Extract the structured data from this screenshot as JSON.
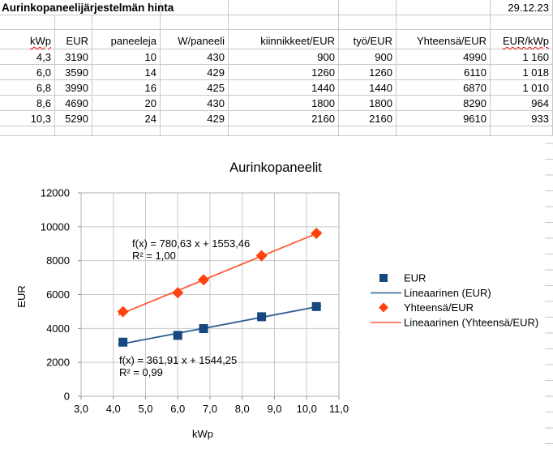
{
  "sheet": {
    "title": "Aurinkopaneelijärjestelmän hinta",
    "date": "29.12.23",
    "columns": [
      "kWp",
      "EUR",
      "paneeleja",
      "W/paneeli",
      "kiinnikkeet/EUR",
      "työ/EUR",
      "Yhteensä/EUR",
      "EUR/kWp"
    ],
    "misspelled_columns": [
      "kWp",
      "EUR/kWp"
    ],
    "rows": [
      [
        "4,3",
        "3190",
        "10",
        "430",
        "900",
        "900",
        "4990",
        "1 160"
      ],
      [
        "6,0",
        "3590",
        "14",
        "429",
        "1260",
        "1260",
        "6110",
        "1 018"
      ],
      [
        "6,8",
        "3990",
        "16",
        "425",
        "1440",
        "1440",
        "6870",
        "1 010"
      ],
      [
        "8,6",
        "4690",
        "20",
        "430",
        "1800",
        "1800",
        "8290",
        "964"
      ],
      [
        "10,3",
        "5290",
        "24",
        "429",
        "2160",
        "2160",
        "9610",
        "933"
      ]
    ]
  },
  "chart_data": {
    "type": "scatter",
    "title": "Aurinkopaneelit",
    "xlabel": "kWp",
    "ylabel": "EUR",
    "xlim": [
      3.0,
      11.0
    ],
    "ylim": [
      0,
      12000
    ],
    "x_tick_labels": [
      "3,0",
      "4,0",
      "5,0",
      "6,0",
      "7,0",
      "8,0",
      "9,0",
      "10,0",
      "11,0"
    ],
    "y_tick_labels": [
      "0",
      "2000",
      "4000",
      "6000",
      "8000",
      "10000",
      "12000"
    ],
    "grid": true,
    "legend_position": "right",
    "colors": {
      "gridline": "#c9c9c9",
      "plot_border": "#b0b0b0",
      "tick": "#8f8f8f",
      "text": "#000000"
    },
    "series": [
      {
        "name": "EUR",
        "marker": "square",
        "color": "#16477e",
        "x": [
          4.3,
          6.0,
          6.8,
          8.6,
          10.3
        ],
        "y": [
          3190,
          3590,
          3990,
          4690,
          5290
        ],
        "trendline": {
          "label": "Lineaarinen (EUR)",
          "color": "#2e5f93",
          "slope": 361.91,
          "intercept": 1544.25,
          "equation": "f(x) = 361,91 x + 1544,25",
          "r_squared": "R² = 0,99"
        }
      },
      {
        "name": "Yhteensä/EUR",
        "marker": "diamond",
        "color": "#ff420e",
        "x": [
          4.3,
          6.0,
          6.8,
          8.6,
          10.3
        ],
        "y": [
          4990,
          6110,
          6870,
          8290,
          9610
        ],
        "trendline": {
          "label": "Lineaarinen (Yhteensä/EUR)",
          "color": "#ff5b36",
          "slope": 780.63,
          "intercept": 1553.46,
          "equation": "f(x) = 780,63 x + 1553,46",
          "r_squared": "R² = 1,00"
        }
      }
    ],
    "legend": [
      "EUR",
      "Lineaarinen (EUR)",
      "Yhteensä/EUR",
      "Lineaarinen (Yhteensä/EUR)"
    ]
  }
}
